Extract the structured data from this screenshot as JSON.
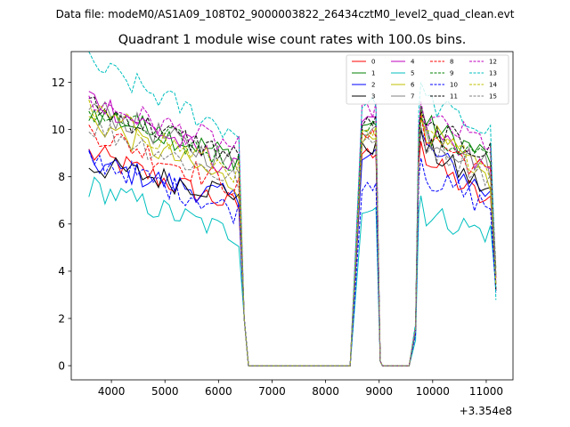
{
  "suptitle": "Data file: modeM0/AS1A09_108T02_9000003822_26434cztM0_level2_quad_clean.evt",
  "chart_data": {
    "type": "line",
    "title": "Quadrant 1 module wise count rates with 100.0s bins.",
    "xlabel": "",
    "ylabel": "",
    "offset_label": "+3.354e8",
    "xlim": [
      3250,
      11500
    ],
    "ylim": [
      -0.6,
      13.3
    ],
    "xticks": [
      4000,
      5000,
      6000,
      7000,
      8000,
      9000,
      10000,
      11000
    ],
    "yticks": [
      0,
      2,
      4,
      6,
      8,
      10,
      12
    ],
    "legend_position": "top-right",
    "x_segments": [
      [
        3580,
        6380
      ],
      [
        6380,
        6560
      ],
      [
        6560,
        8480
      ],
      [
        8480,
        8980
      ],
      [
        8980,
        9060
      ],
      [
        9060,
        9560
      ],
      [
        9560,
        9780
      ],
      [
        9780,
        11180
      ]
    ],
    "series": [
      {
        "name": "0",
        "color": "#ff0000",
        "dash": "solid",
        "seg1_start": 9.0,
        "seg1_end": 6.7,
        "seg3_level": 9.0,
        "seg5_peak": 9.5,
        "seg5_end": 6.8
      },
      {
        "name": "1",
        "color": "#008000",
        "dash": "solid",
        "seg1_start": 10.8,
        "seg1_end": 8.8,
        "seg3_level": 10.2,
        "seg5_peak": 11.0,
        "seg5_end": 8.8
      },
      {
        "name": "2",
        "color": "#0000ff",
        "dash": "solid",
        "seg1_start": 8.6,
        "seg1_end": 7.0,
        "seg3_level": 9.0,
        "seg5_peak": 10.0,
        "seg5_end": 7.2
      },
      {
        "name": "3",
        "color": "#000000",
        "dash": "solid",
        "seg1_start": 8.5,
        "seg1_end": 7.3,
        "seg3_level": 9.2,
        "seg5_peak": 10.0,
        "seg5_end": 7.3
      },
      {
        "name": "4",
        "color": "#bf00bf",
        "dash": "solid",
        "seg1_start": 11.4,
        "seg1_end": 8.2,
        "seg3_level": 10.6,
        "seg5_peak": 10.5,
        "seg5_end": 8.2
      },
      {
        "name": "5",
        "color": "#00bfbf",
        "dash": "solid",
        "seg1_start": 7.6,
        "seg1_end": 5.5,
        "seg3_level": 6.6,
        "seg5_peak": 7.2,
        "seg5_end": 5.6
      },
      {
        "name": "6",
        "color": "#bfbf00",
        "dash": "solid",
        "seg1_start": 10.4,
        "seg1_end": 7.6,
        "seg3_level": 9.6,
        "seg5_peak": 10.8,
        "seg5_end": 7.8
      },
      {
        "name": "7",
        "color": "#808080",
        "dash": "solid",
        "seg1_start": 11.0,
        "seg1_end": 8.4,
        "seg3_level": 10.0,
        "seg5_peak": 10.5,
        "seg5_end": 8.4
      },
      {
        "name": "8",
        "color": "#ff0000",
        "dash": "dashed",
        "seg1_start": 10.0,
        "seg1_end": 7.5,
        "seg3_level": 9.7,
        "seg5_peak": 10.6,
        "seg5_end": 8.0
      },
      {
        "name": "9",
        "color": "#008000",
        "dash": "dashed",
        "seg1_start": 10.8,
        "seg1_end": 8.6,
        "seg3_level": 10.2,
        "seg5_peak": 10.5,
        "seg5_end": 8.8
      },
      {
        "name": "10",
        "color": "#0000ff",
        "dash": "dashed",
        "seg1_start": 8.8,
        "seg1_end": 6.5,
        "seg3_level": 7.7,
        "seg5_peak": 8.8,
        "seg5_end": 6.7
      },
      {
        "name": "11",
        "color": "#000000",
        "dash": "dashed",
        "seg1_start": 11.0,
        "seg1_end": 8.8,
        "seg3_level": 10.3,
        "seg5_peak": 10.8,
        "seg5_end": 9.0
      },
      {
        "name": "12",
        "color": "#bf00bf",
        "dash": "dashed",
        "seg1_start": 11.2,
        "seg1_end": 9.2,
        "seg3_level": 10.8,
        "seg5_peak": 11.2,
        "seg5_end": 9.4
      },
      {
        "name": "13",
        "color": "#00bfbf",
        "dash": "dashed",
        "seg1_start": 12.8,
        "seg1_end": 9.8,
        "seg3_level": 11.1,
        "seg5_peak": 12.0,
        "seg5_end": 9.8
      },
      {
        "name": "14",
        "color": "#bfbf00",
        "dash": "dashed",
        "seg1_start": 10.8,
        "seg1_end": 8.2,
        "seg3_level": 9.8,
        "seg5_peak": 10.4,
        "seg5_end": 8.4
      },
      {
        "name": "15",
        "color": "#808080",
        "dash": "dashed",
        "seg1_start": 10.2,
        "seg1_end": 7.8,
        "seg3_level": 9.4,
        "seg5_peak": 10.2,
        "seg5_end": 8.0
      }
    ]
  }
}
